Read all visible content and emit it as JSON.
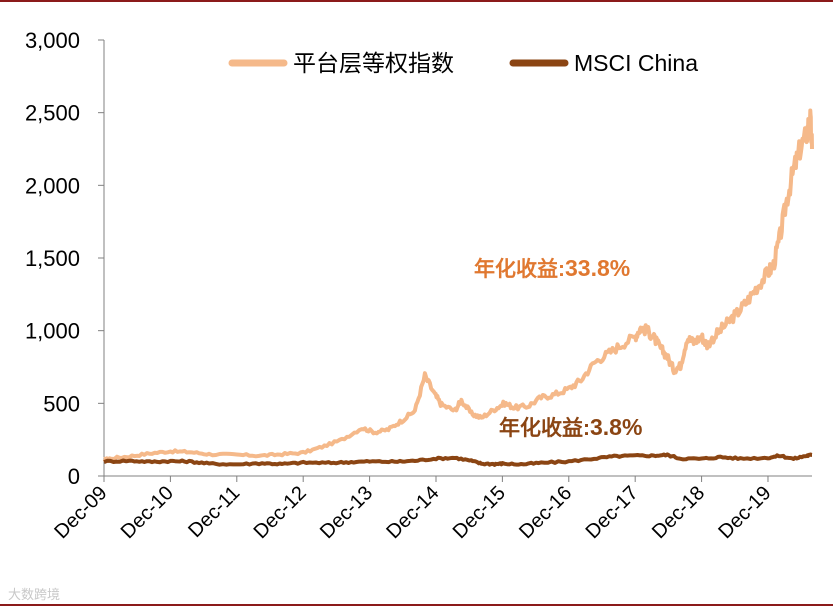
{
  "chart_data": {
    "type": "line",
    "title": "",
    "xlabel": "",
    "ylabel": "",
    "ylim": [
      0,
      3000
    ],
    "yticks": [
      0,
      500,
      1000,
      1500,
      2000,
      2500,
      3000
    ],
    "ytick_labels": [
      "0",
      "500",
      "1,000",
      "1,500",
      "2,000",
      "2,500",
      "3,000"
    ],
    "xlim": [
      2009.917,
      2020.58
    ],
    "xticks": [
      2009.917,
      2010.917,
      2011.917,
      2012.917,
      2013.917,
      2014.917,
      2015.917,
      2016.917,
      2017.917,
      2018.917,
      2019.917
    ],
    "xtick_labels": [
      "Dec-09",
      "Dec-10",
      "Dec-11",
      "Dec-12",
      "Dec-13",
      "Dec-14",
      "Dec-15",
      "Dec-16",
      "Dec-17",
      "Dec-18",
      "Dec-19"
    ],
    "legend_position": "top",
    "series": [
      {
        "name": "平台层等权指数",
        "color": "#f5b98a",
        "x": [
          2009.917,
          2010.0,
          2010.3,
          2010.6,
          2010.917,
          2011.2,
          2011.5,
          2011.917,
          2012.3,
          2012.6,
          2012.917,
          2013.2,
          2013.5,
          2013.8,
          2014.0,
          2014.2,
          2014.4,
          2014.6,
          2014.75,
          2014.9,
          2015.0,
          2015.2,
          2015.3,
          2015.45,
          2015.6,
          2015.8,
          2015.95,
          2016.1,
          2016.3,
          2016.5,
          2016.7,
          2016.917,
          2017.1,
          2017.3,
          2017.5,
          2017.7,
          2017.917,
          2018.0,
          2018.1,
          2018.2,
          2018.3,
          2018.4,
          2018.5,
          2018.6,
          2018.7,
          2018.8,
          2018.917,
          2019.0,
          2019.15,
          2019.3,
          2019.45,
          2019.6,
          2019.75,
          2019.917,
          2020.0,
          2020.1,
          2020.2,
          2020.3,
          2020.4,
          2020.5,
          2020.55,
          2020.58
        ],
        "values": [
          110,
          120,
          135,
          155,
          170,
          165,
          150,
          145,
          140,
          150,
          160,
          200,
          250,
          330,
          300,
          320,
          380,
          450,
          690,
          560,
          490,
          450,
          520,
          430,
          400,
          460,
          500,
          470,
          480,
          540,
          560,
          600,
          660,
          780,
          840,
          900,
          960,
          1020,
          1000,
          950,
          880,
          820,
          730,
          760,
          950,
          920,
          960,
          900,
          980,
          1050,
          1120,
          1200,
          1300,
          1400,
          1450,
          1650,
          1900,
          2100,
          2250,
          2350,
          2480,
          2250
        ]
      },
      {
        "name": "MSCI China",
        "color": "#8b4513",
        "x": [
          2009.917,
          2010.3,
          2010.6,
          2010.917,
          2011.2,
          2011.5,
          2011.917,
          2012.3,
          2012.6,
          2012.917,
          2013.3,
          2013.6,
          2013.917,
          2014.3,
          2014.6,
          2014.917,
          2015.2,
          2015.45,
          2015.6,
          2015.8,
          2015.917,
          2016.2,
          2016.5,
          2016.917,
          2017.3,
          2017.6,
          2017.917,
          2018.2,
          2018.4,
          2018.6,
          2018.917,
          2019.2,
          2019.5,
          2019.917,
          2020.1,
          2020.3,
          2020.5,
          2020.58
        ],
        "values": [
          100,
          105,
          98,
          102,
          100,
          85,
          80,
          88,
          82,
          92,
          90,
          95,
          100,
          98,
          105,
          120,
          125,
          105,
          85,
          82,
          85,
          80,
          90,
          100,
          120,
          135,
          140,
          140,
          145,
          120,
          118,
          130,
          120,
          125,
          140,
          118,
          140,
          145
        ]
      }
    ],
    "annotations": [
      {
        "label": "年化收益:",
        "value": "33.8%",
        "color": "#e07830"
      },
      {
        "label": "年化收益:",
        "value": "3.8%",
        "color": "#8b4513"
      }
    ]
  },
  "watermark": "大数跨境"
}
